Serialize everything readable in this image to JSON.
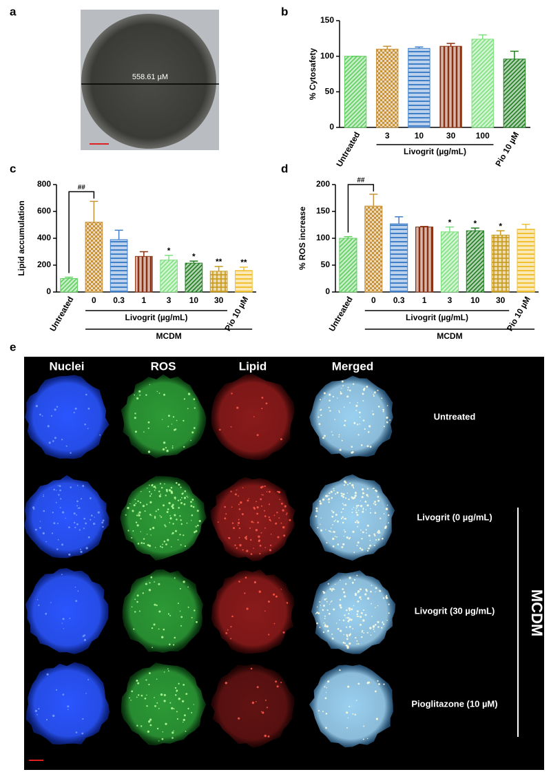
{
  "panel_labels": [
    "a",
    "b",
    "c",
    "d",
    "e"
  ],
  "image_a": {
    "measurement": "558.61 µM"
  },
  "chart_data": [
    {
      "type": "bar",
      "y_label": "% Cytosafety",
      "categories": [
        "Untreated",
        "3",
        "10",
        "30",
        "100",
        "Pio 10 µM"
      ],
      "values": [
        100,
        110,
        111,
        114,
        124,
        96
      ],
      "errors": [
        0,
        4,
        2,
        4,
        6,
        11
      ],
      "colors": [
        "#5fcf5f",
        "#c8923a",
        "#3f7fc8",
        "#8b3010",
        "#7fe07f",
        "#1f7f1f"
      ],
      "patterns": [
        "diagonal",
        "checker",
        "horizontal",
        "vertical",
        "diagonal",
        "diagonal"
      ],
      "ylim": [
        0,
        150
      ],
      "yticks": [
        0,
        50,
        100,
        150
      ],
      "group_labels": [
        "Livogrit (µg/mL)"
      ]
    },
    {
      "type": "bar",
      "y_label": "Lipid accumulation",
      "categories": [
        "Untreated",
        "0",
        "0.3",
        "1",
        "3",
        "10",
        "30",
        "Pio 10 µM"
      ],
      "values": [
        100,
        520,
        390,
        265,
        238,
        215,
        155,
        160
      ],
      "errors": [
        10,
        155,
        70,
        35,
        35,
        15,
        35,
        25
      ],
      "significance": [
        null,
        null,
        null,
        null,
        "*",
        "*",
        "**",
        "**"
      ],
      "comparison_label": "##",
      "colors": [
        "#5fcf5f",
        "#c8923a",
        "#3f7fc8",
        "#8b3010",
        "#7fe07f",
        "#1f7f1f",
        "#c89a1a",
        "#f0c030"
      ],
      "patterns": [
        "diagonal",
        "checker",
        "horizontal",
        "vertical",
        "diagonal",
        "diagonal",
        "grid",
        "horizontal"
      ],
      "ylim": [
        0,
        800
      ],
      "yticks": [
        0,
        200,
        400,
        600,
        800
      ],
      "group_labels": [
        "Livogrit (µg/mL)",
        "MCDM"
      ]
    },
    {
      "type": "bar",
      "y_label": "% ROS increase",
      "categories": [
        "Untreated",
        "0",
        "0.3",
        "1",
        "3",
        "10",
        "30",
        "Pio 10 µM"
      ],
      "values": [
        100,
        160,
        127,
        121,
        112,
        114,
        106,
        117
      ],
      "errors": [
        3,
        22,
        13,
        1,
        9,
        5,
        8,
        9
      ],
      "significance": [
        null,
        null,
        null,
        null,
        "*",
        "*",
        "*",
        null
      ],
      "comparison_label": "##",
      "colors": [
        "#5fcf5f",
        "#c8923a",
        "#3f7fc8",
        "#8b3010",
        "#7fe07f",
        "#1f7f1f",
        "#c89a1a",
        "#f0c030"
      ],
      "patterns": [
        "diagonal",
        "checker",
        "horizontal",
        "vertical",
        "diagonal",
        "diagonal",
        "grid",
        "horizontal"
      ],
      "ylim": [
        0,
        200
      ],
      "yticks": [
        0,
        50,
        100,
        150,
        200
      ],
      "group_labels": [
        "Livogrit (µg/mL)",
        "MCDM"
      ]
    }
  ],
  "panel_e": {
    "columns": [
      "Nuclei",
      "ROS",
      "Lipid",
      "Merged"
    ],
    "rows": [
      "Untreated",
      "Livogrit (0 µg/mL)",
      "Livogrit (30 µg/mL)",
      "Pioglitazone (10 µM)"
    ],
    "group_label": "MCDM"
  }
}
